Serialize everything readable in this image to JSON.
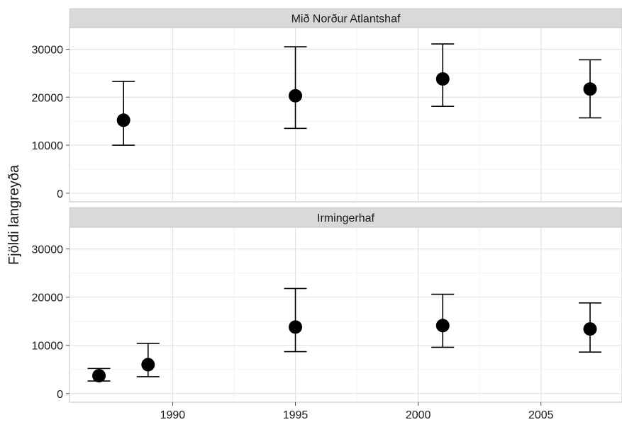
{
  "chart_data": {
    "type": "scatter",
    "ylabel": "Fjöldi langreyða",
    "xlabel": "",
    "xlim": [
      1985.8,
      2008.3
    ],
    "ylim": [
      -1800,
      34500
    ],
    "x_ticks": [
      1990,
      1995,
      2000,
      2005
    ],
    "y_ticks": [
      0,
      10000,
      20000,
      30000
    ],
    "grid": true,
    "panels": [
      {
        "strip": "Mið Norður Atlantshaf",
        "points": [
          {
            "x": 1988,
            "y": 15200,
            "lower": 10000,
            "upper": 23300
          },
          {
            "x": 1995,
            "y": 20300,
            "lower": 13500,
            "upper": 30500
          },
          {
            "x": 2001,
            "y": 23800,
            "lower": 18100,
            "upper": 31100
          },
          {
            "x": 2007,
            "y": 21700,
            "lower": 15700,
            "upper": 27800
          }
        ]
      },
      {
        "strip": "Irmingerhaf",
        "points": [
          {
            "x": 1987,
            "y": 3700,
            "lower": 2600,
            "upper": 5200
          },
          {
            "x": 1989,
            "y": 6000,
            "lower": 3500,
            "upper": 10400
          },
          {
            "x": 1995,
            "y": 13800,
            "lower": 8700,
            "upper": 21800
          },
          {
            "x": 2001,
            "y": 14100,
            "lower": 9600,
            "upper": 20600
          },
          {
            "x": 2007,
            "y": 13400,
            "lower": 8600,
            "upper": 18800
          }
        ]
      }
    ]
  }
}
